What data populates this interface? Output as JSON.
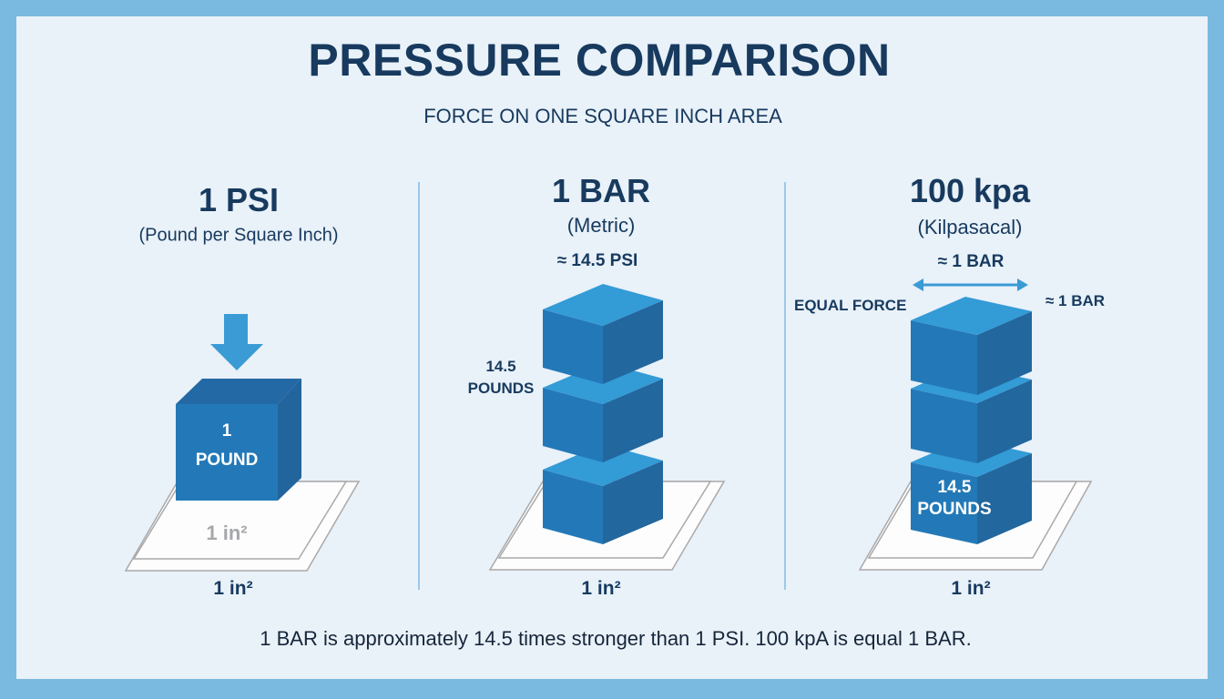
{
  "title": "PRESSURE COMPARISON",
  "subtitle": "FORCE ON ONE SQUARE INCH AREA",
  "columns": [
    {
      "heading": "1 PSI",
      "subheading": "(Pound per Square Inch)",
      "cube_label_1": "1",
      "cube_label_2": "POUND",
      "plate_label": "1 in²",
      "area_label": "1 in²"
    },
    {
      "heading": "1 BAR",
      "subheading": "(Metric)",
      "equivalence": "≈ 14.5 PSI",
      "side_label_1": "14.5",
      "side_label_2": "POUNDS",
      "area_label": "1 in²"
    },
    {
      "heading": "100 kpa",
      "subheading": "(Kilpasacal)",
      "equivalence": "≈ 1 BAR",
      "left_label": "EQUAL FORCE",
      "right_label": "≈ 1 BAR",
      "cube_label_1": "14.5",
      "cube_label_2": "POUNDS",
      "area_label": "1 in²"
    }
  ],
  "caption": "1 BAR is approximately 14.5 times stronger than 1 PSI. 100 kpA is equal 1 BAR.",
  "colors": {
    "frame": "#7ab9e0",
    "background": "#e9f1f9",
    "text": "#173a5e",
    "cube_top": "#339bd6",
    "cube_front": "#2379b7",
    "cube_side": "#22679e"
  }
}
